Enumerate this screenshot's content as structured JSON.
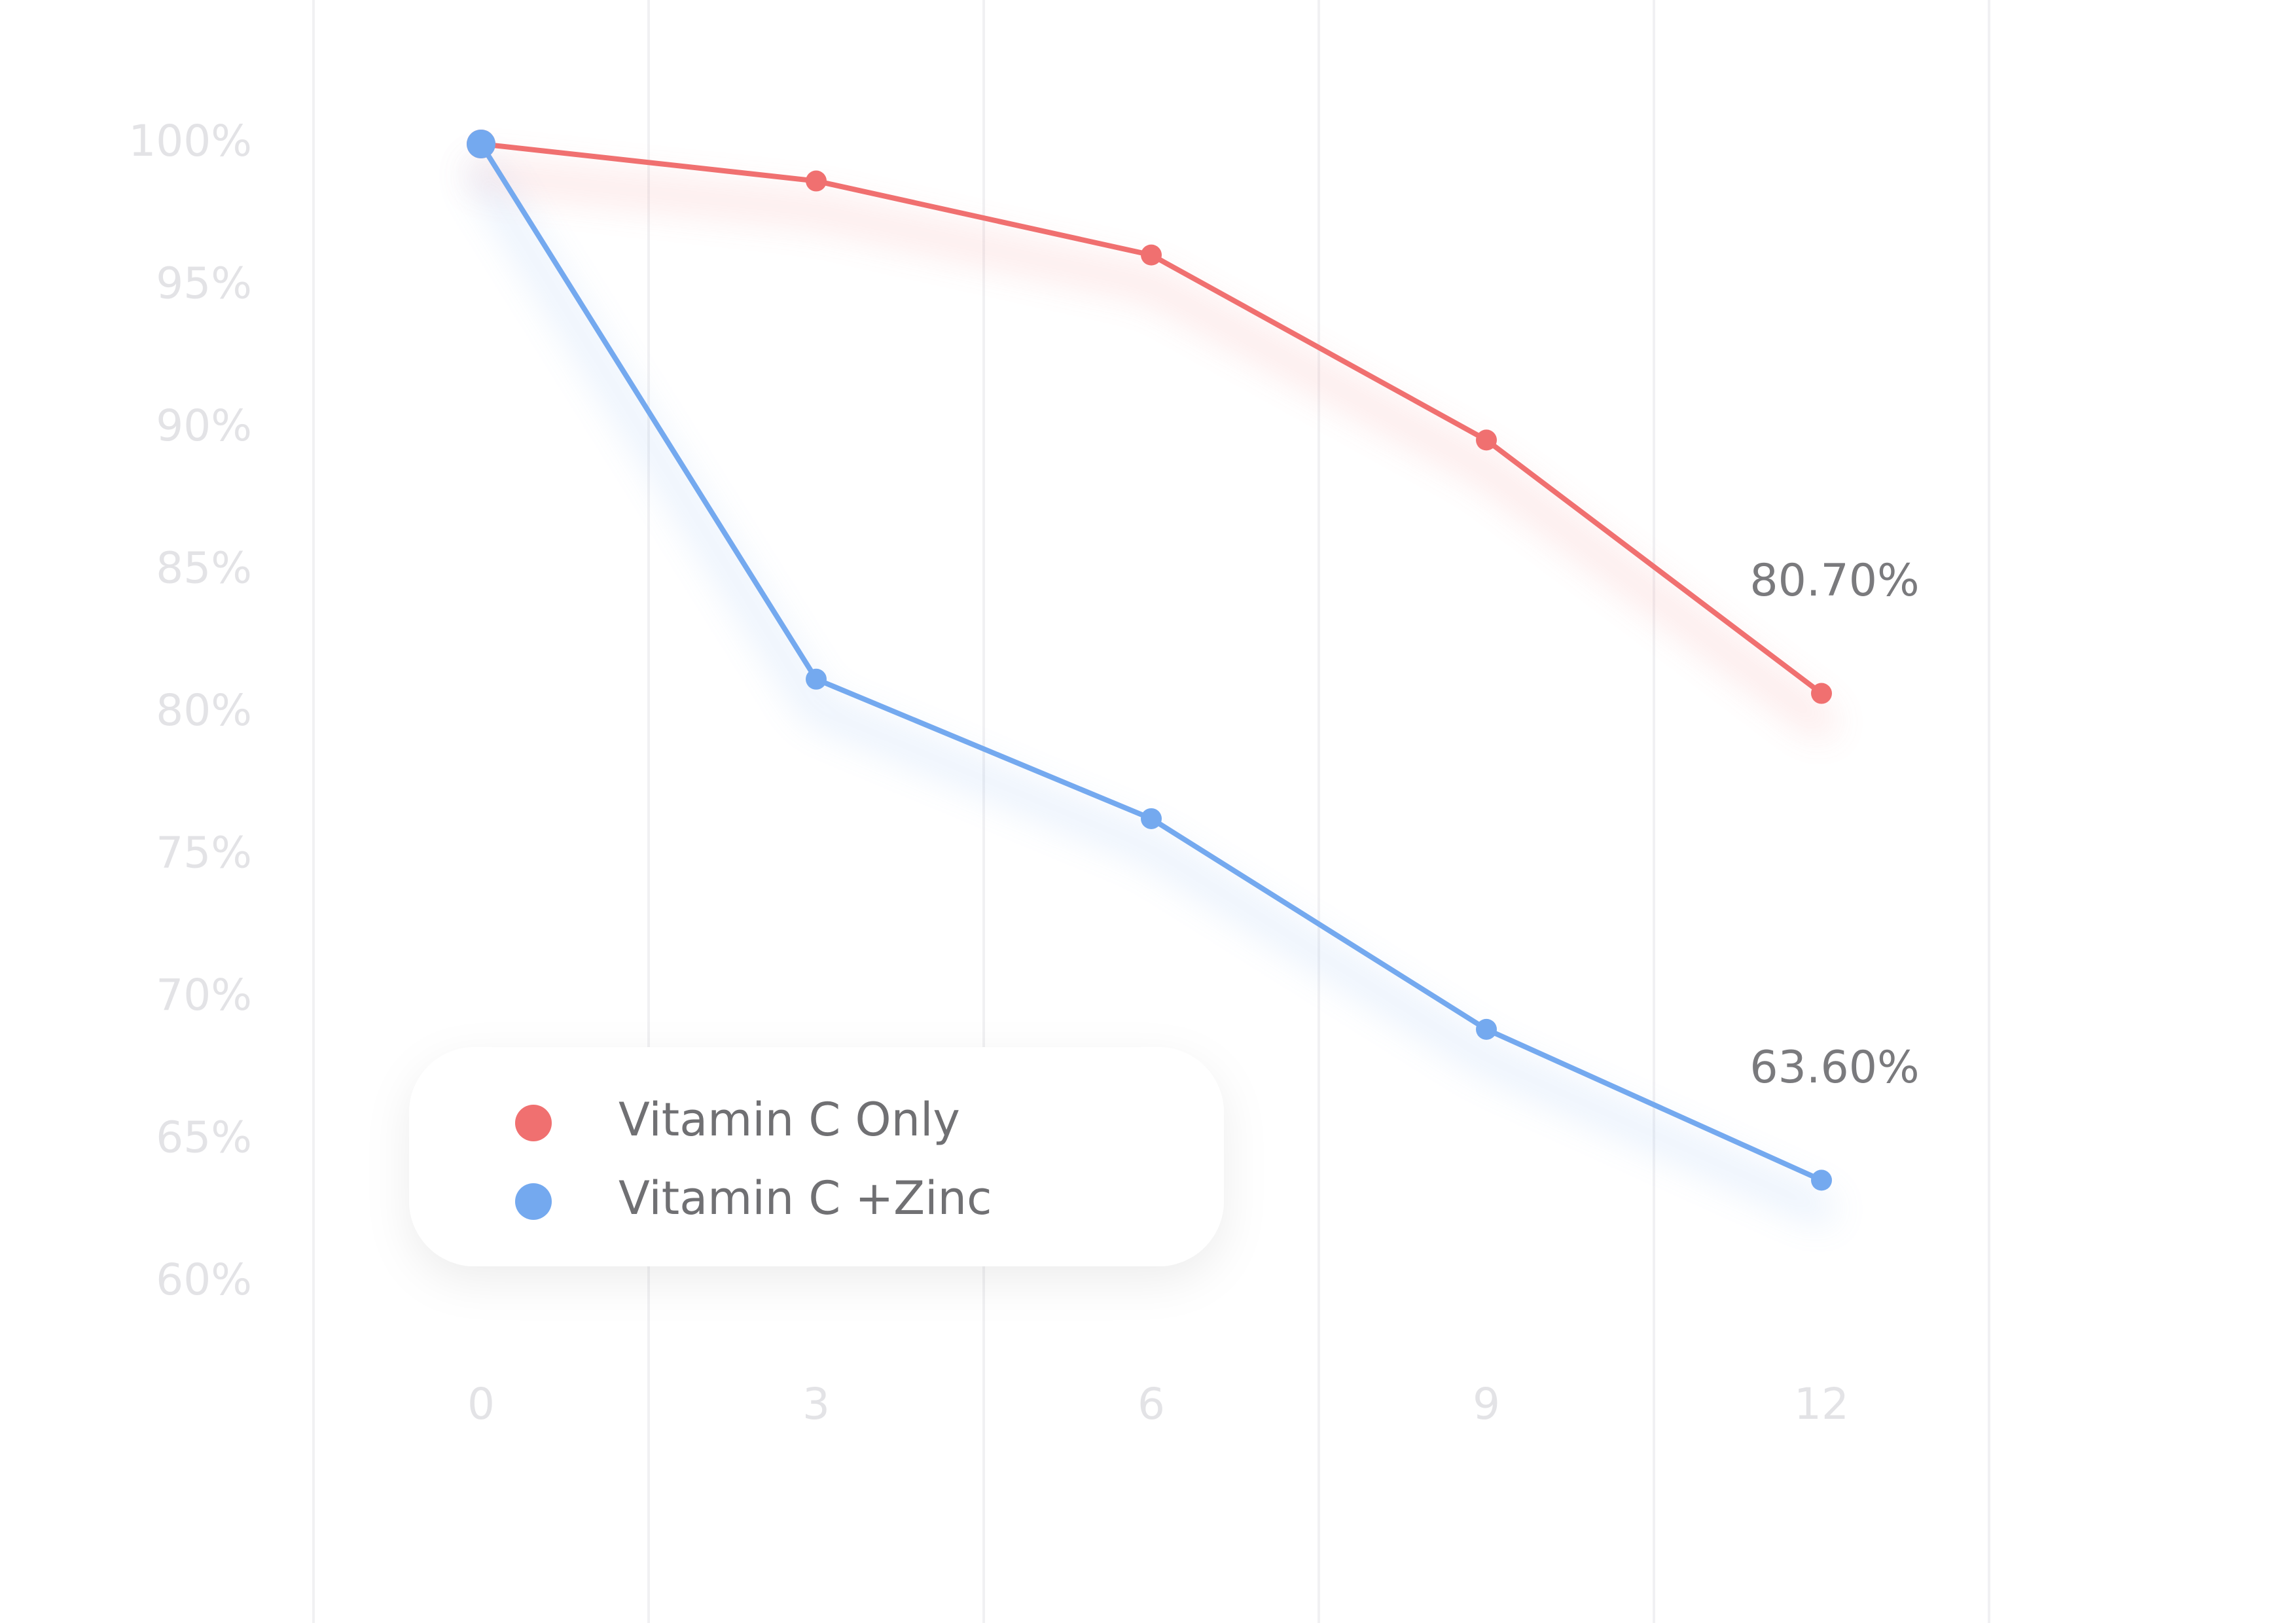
{
  "chart_data": {
    "type": "line",
    "title": "",
    "xlabel": "",
    "ylabel": "",
    "x": [
      0,
      3,
      6,
      9,
      12
    ],
    "x_tick_labels": [
      "0",
      "3",
      "6",
      "9",
      "12"
    ],
    "ylim": [
      58,
      102
    ],
    "y_ticks": [
      100,
      95,
      90,
      85,
      80,
      75,
      70,
      65,
      60
    ],
    "y_tick_labels": [
      "100%",
      "95%",
      "90%",
      "85%",
      "80%",
      "75%",
      "70%",
      "65%",
      "60%"
    ],
    "grid": "vertical",
    "legend_position": "bottom-left",
    "series": [
      {
        "name": "Vitamin C Only",
        "color": "#f07070",
        "values": [
          100,
          98.7,
          96.1,
          89.6,
          80.7
        ],
        "end_label": "80.70%"
      },
      {
        "name": "Vitamin C +Zinc",
        "color": "#74a9ef",
        "values": [
          100,
          81.2,
          76.3,
          68.9,
          63.6
        ],
        "end_label": "63.60%"
      }
    ]
  }
}
